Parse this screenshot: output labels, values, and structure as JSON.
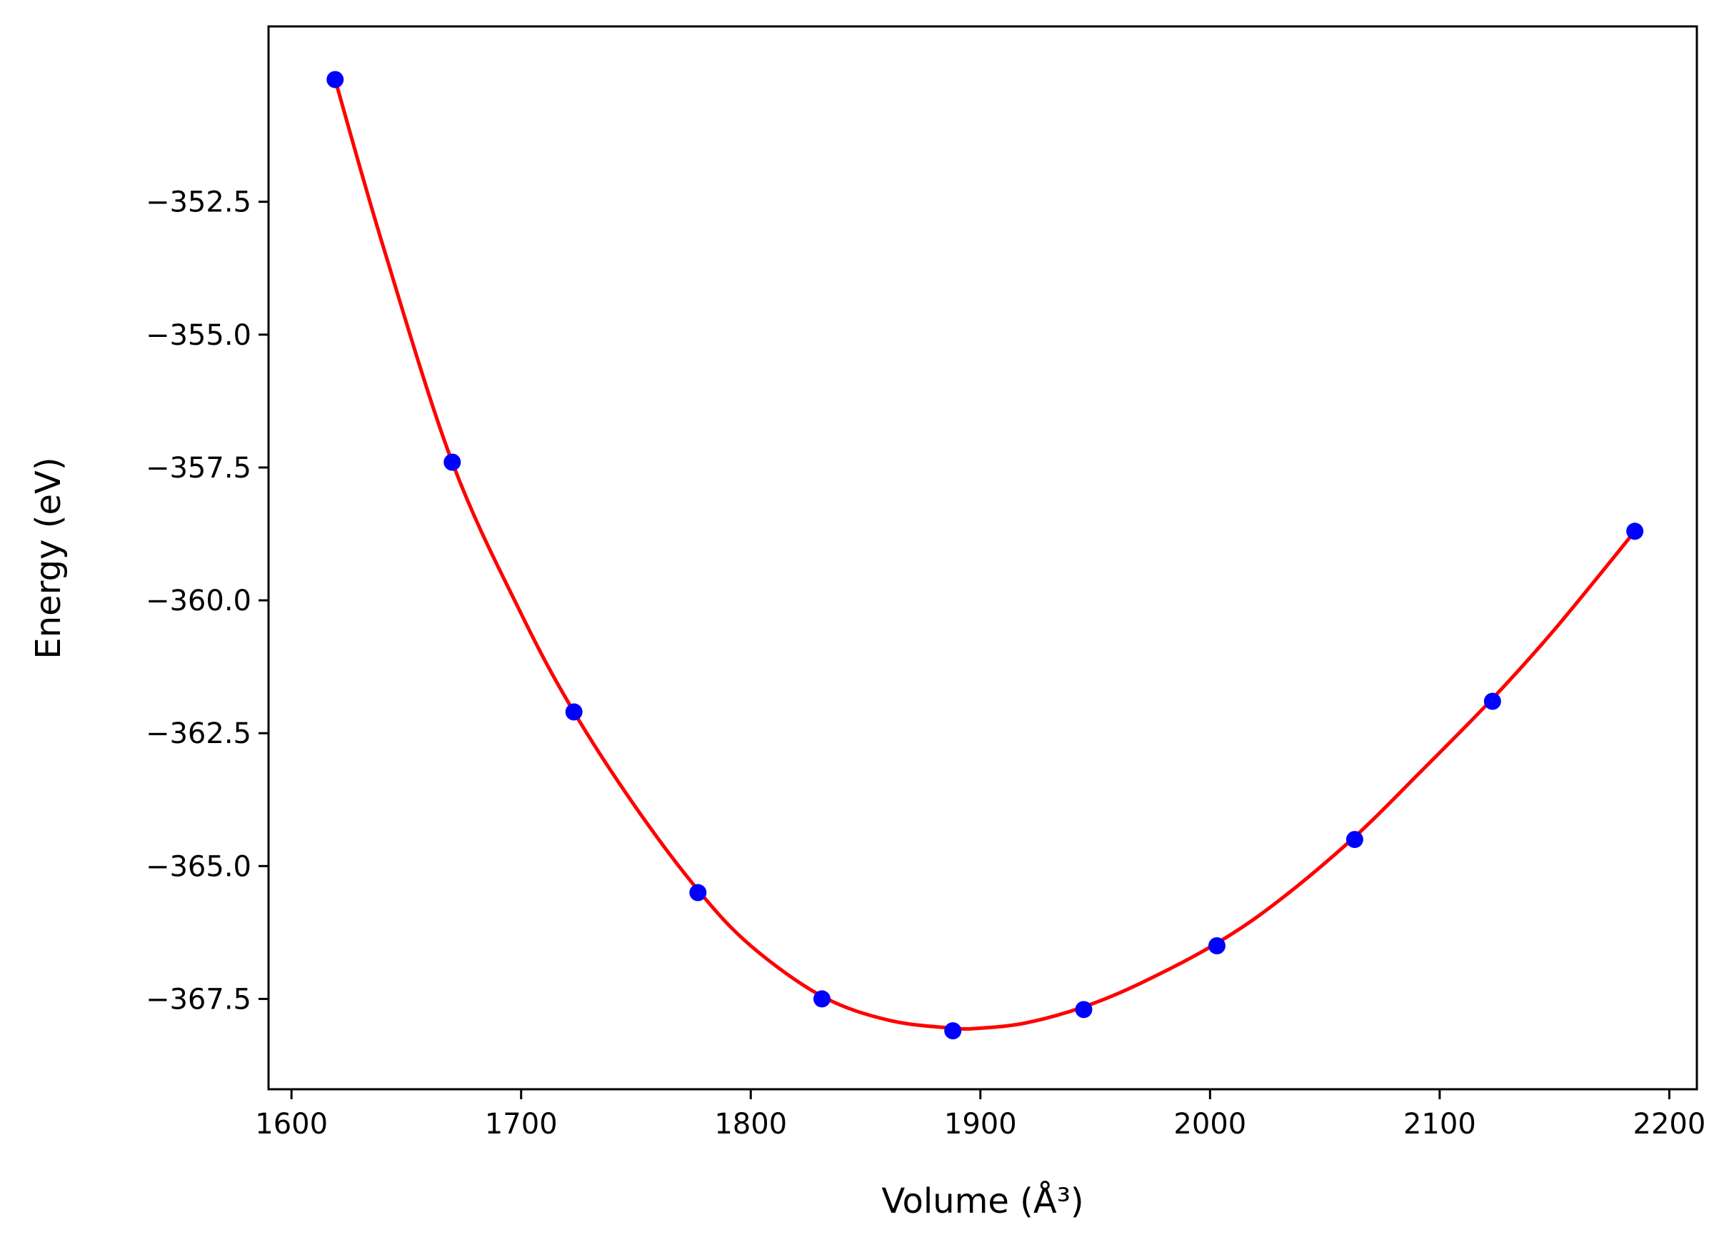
{
  "chart_data": {
    "type": "scatter",
    "title": "",
    "xlabel": "Volume (Å³)",
    "ylabel": "Energy (eV)",
    "xlim": [
      1590,
      2212
    ],
    "ylim": [
      -369.2,
      -349.2
    ],
    "grid": false,
    "legend": "none",
    "x_ticks": [
      1600,
      1700,
      1800,
      1900,
      2000,
      2100,
      2200
    ],
    "x_tick_labels": [
      "1600",
      "1700",
      "1800",
      "1900",
      "2000",
      "2100",
      "2200"
    ],
    "y_ticks": [
      -352.5,
      -355.0,
      -357.5,
      -360.0,
      -362.5,
      -365.0,
      -367.5
    ],
    "y_tick_labels": [
      "−352.5",
      "−355.0",
      "−357.5",
      "−360.0",
      "−362.5",
      "−365.0",
      "−367.5"
    ],
    "series": [
      {
        "kind": "points",
        "color": "#0000ff",
        "x": [
          1619,
          1670,
          1723,
          1777,
          1831,
          1888,
          1945,
          2003,
          2063,
          2123,
          2185
        ],
        "y": [
          -350.2,
          -357.4,
          -362.1,
          -365.5,
          -367.5,
          -368.1,
          -367.7,
          -366.5,
          -364.5,
          -361.9,
          -358.7
        ]
      },
      {
        "kind": "fit-line",
        "color": "#ff0000",
        "x": [
          1619,
          1640,
          1670,
          1700,
          1723,
          1750,
          1777,
          1800,
          1831,
          1860,
          1888,
          1900,
          1920,
          1945,
          1970,
          2003,
          2030,
          2063,
          2090,
          2123,
          2150,
          2185
        ],
        "y": [
          -350.2,
          -353.35,
          -357.4,
          -360.25,
          -362.1,
          -363.9,
          -365.45,
          -366.5,
          -367.45,
          -367.9,
          -368.05,
          -368.05,
          -367.95,
          -367.65,
          -367.2,
          -366.45,
          -365.65,
          -364.45,
          -363.3,
          -361.85,
          -360.55,
          -358.7
        ]
      }
    ]
  }
}
